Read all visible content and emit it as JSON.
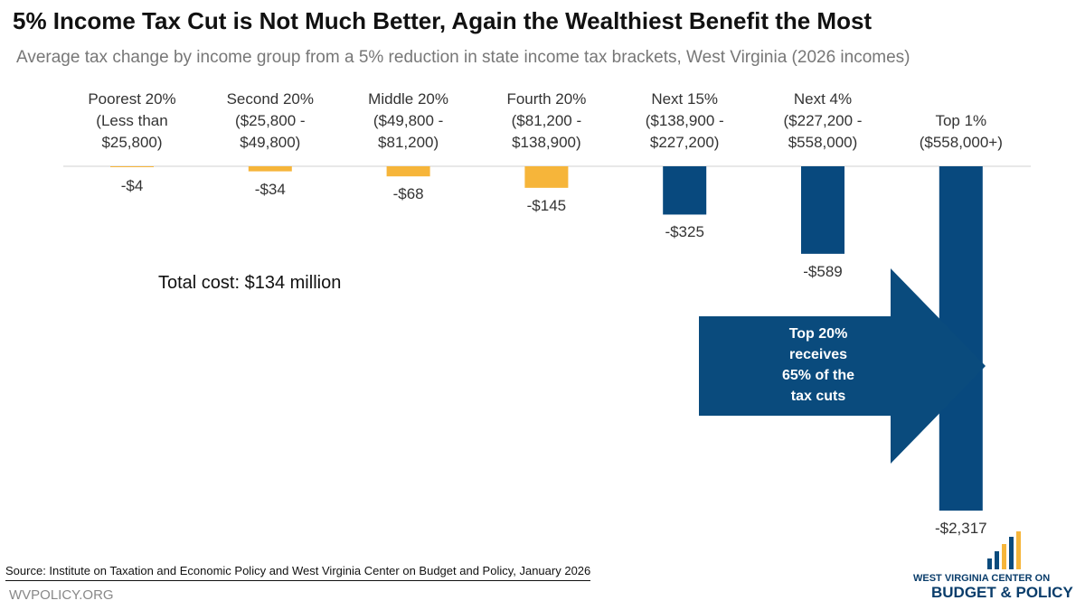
{
  "chart_data": {
    "type": "bar",
    "title": "5% Income Tax Cut is Not Much Better, Again the Wealthiest Benefit the Most",
    "subtitle": "Average tax change by income group from a 5% reduction in state income tax brackets, West Virginia (2026 incomes)",
    "categories": [
      "Poorest 20%\n(Less than\n$25,800)",
      "Second 20%\n($25,800 -\n$49,800)",
      "Middle 20%\n($49,800 -\n$81,200)",
      "Fourth 20%\n($81,200 -\n$138,900)",
      "Next 15%\n($138,900 -\n$227,200)",
      "Next 4%\n($227,200 -\n$558,000)",
      "Top 1%\n($558,000+)"
    ],
    "values": [
      -4,
      -34,
      -68,
      -145,
      -325,
      -589,
      -2317
    ],
    "value_labels": [
      "-$4",
      "-$34",
      "-$68",
      "-$145",
      "-$325",
      "-$589",
      "-$2,317"
    ],
    "colors": [
      "#f6b53a",
      "#f6b53a",
      "#f6b53a",
      "#f6b53a",
      "#08497e",
      "#08497e",
      "#08497e"
    ],
    "annotations": [
      "Total cost: $134 million",
      "Top 20%\nreceives\n65% of the\ntax cuts"
    ],
    "source": "Source: Institute on Taxation and Economic Policy and West Virginia Center on Budget and Policy, January 2026",
    "site": "WVPOLICY.ORG",
    "logo": [
      "WEST VIRGINIA CENTER ON",
      "BUDGET & POLICY"
    ]
  }
}
